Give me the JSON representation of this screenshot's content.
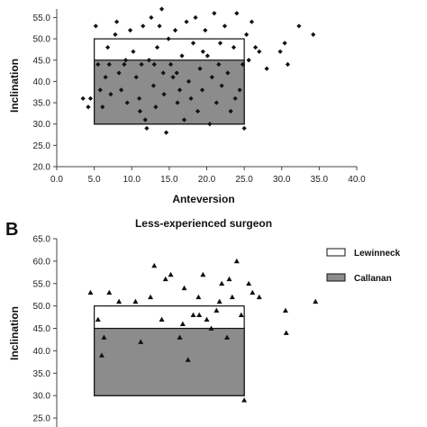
{
  "chart_data": [
    {
      "type": "scatter",
      "title": "",
      "xlabel": "Anteversion",
      "ylabel": "Inclination",
      "xlim": [
        0,
        40
      ],
      "ylim": [
        20,
        57
      ],
      "x_ticks": [
        "0.0",
        "5.0",
        "10.0",
        "15.0",
        "20.0",
        "25.0",
        "30.0",
        "35.0",
        "40.0"
      ],
      "y_ticks": [
        "20.0",
        "25.0",
        "30.0",
        "35.0",
        "40.0",
        "45.0",
        "50.0",
        "55.0"
      ],
      "marker": "diamond",
      "boxes": [
        {
          "name": "Lewinneck",
          "x": [
            5,
            25
          ],
          "y": [
            30,
            50
          ],
          "fill": "#ffffff"
        },
        {
          "name": "Callanan",
          "x": [
            5,
            25
          ],
          "y": [
            30,
            45
          ],
          "fill": "#8c8c8c"
        }
      ],
      "points": [
        [
          4.5,
          36
        ],
        [
          4.2,
          34
        ],
        [
          3.5,
          36
        ],
        [
          5.2,
          53
        ],
        [
          5.5,
          44
        ],
        [
          5.8,
          38
        ],
        [
          6.1,
          34
        ],
        [
          6.5,
          41
        ],
        [
          7.0,
          44
        ],
        [
          7.2,
          37
        ],
        [
          7.8,
          51
        ],
        [
          8.0,
          54
        ],
        [
          8.3,
          42
        ],
        [
          8.6,
          38
        ],
        [
          9.0,
          44
        ],
        [
          9.4,
          35
        ],
        [
          9.8,
          52
        ],
        [
          10.2,
          47
        ],
        [
          10.6,
          41
        ],
        [
          11.0,
          36
        ],
        [
          11.1,
          33
        ],
        [
          11.3,
          44
        ],
        [
          11.5,
          53
        ],
        [
          11.8,
          31
        ],
        [
          12.0,
          29
        ],
        [
          12.3,
          45
        ],
        [
          12.6,
          55
        ],
        [
          12.9,
          39
        ],
        [
          13.2,
          34
        ],
        [
          13.4,
          48
        ],
        [
          13.7,
          53
        ],
        [
          14.0,
          57
        ],
        [
          14.2,
          42
        ],
        [
          14.3,
          37
        ],
        [
          14.6,
          28
        ],
        [
          14.9,
          50
        ],
        [
          15.2,
          44
        ],
        [
          15.5,
          41
        ],
        [
          15.8,
          52
        ],
        [
          16.1,
          35
        ],
        [
          16.4,
          38
        ],
        [
          16.7,
          46
        ],
        [
          17.0,
          31
        ],
        [
          17.3,
          54
        ],
        [
          17.6,
          40
        ],
        [
          17.9,
          36
        ],
        [
          18.2,
          49
        ],
        [
          18.5,
          55
        ],
        [
          18.8,
          33
        ],
        [
          19.1,
          43
        ],
        [
          19.4,
          38
        ],
        [
          19.8,
          52
        ],
        [
          20.1,
          46
        ],
        [
          20.4,
          30
        ],
        [
          20.7,
          41
        ],
        [
          21.0,
          56
        ],
        [
          21.3,
          35
        ],
        [
          21.6,
          44
        ],
        [
          22.0,
          39
        ],
        [
          22.4,
          53
        ],
        [
          22.8,
          42
        ],
        [
          23.2,
          33
        ],
        [
          23.6,
          48
        ],
        [
          24.0,
          56
        ],
        [
          24.4,
          38
        ],
        [
          24.8,
          44
        ],
        [
          25.0,
          29
        ],
        [
          25.3,
          51
        ],
        [
          25.6,
          45
        ],
        [
          26.0,
          54
        ],
        [
          26.5,
          48
        ],
        [
          27.0,
          47
        ],
        [
          28.0,
          43
        ],
        [
          29.8,
          47
        ],
        [
          30.4,
          49
        ],
        [
          30.8,
          44
        ],
        [
          32.3,
          53
        ],
        [
          34.2,
          51
        ],
        [
          6.8,
          48
        ],
        [
          9.2,
          45
        ],
        [
          13.0,
          44
        ],
        [
          16.0,
          42
        ],
        [
          19.5,
          47
        ],
        [
          21.8,
          49
        ],
        [
          23.8,
          36
        ]
      ]
    },
    {
      "type": "scatter",
      "panel_label": "B",
      "title": "Less-experienced surgeon",
      "xlabel": "",
      "ylabel": "Inclination",
      "xlim": [
        0,
        40
      ],
      "ylim": [
        23,
        65
      ],
      "y_ticks": [
        "25.0",
        "30.0",
        "35.0",
        "40.0",
        "45.0",
        "50.0",
        "55.0",
        "60.0",
        "65.0"
      ],
      "marker": "triangle",
      "legend": {
        "position": "top-right",
        "entries": [
          "Lewinneck",
          "Callanan"
        ]
      },
      "boxes": [
        {
          "name": "Lewinneck",
          "x": [
            5,
            25
          ],
          "y": [
            30,
            50
          ],
          "fill": "#ffffff"
        },
        {
          "name": "Callanan",
          "x": [
            5,
            25
          ],
          "y": [
            30,
            45
          ],
          "fill": "#8c8c8c"
        }
      ],
      "points": [
        [
          4.5,
          53
        ],
        [
          5.5,
          47
        ],
        [
          6.0,
          39
        ],
        [
          6.3,
          43
        ],
        [
          7.0,
          53
        ],
        [
          8.3,
          51
        ],
        [
          10.5,
          51
        ],
        [
          11.2,
          42
        ],
        [
          12.5,
          52
        ],
        [
          13.0,
          59
        ],
        [
          14.5,
          56
        ],
        [
          15.2,
          57
        ],
        [
          16.4,
          43
        ],
        [
          17.0,
          54
        ],
        [
          17.5,
          38
        ],
        [
          18.2,
          48
        ],
        [
          18.9,
          52
        ],
        [
          19.5,
          57
        ],
        [
          20.0,
          47
        ],
        [
          20.6,
          45
        ],
        [
          21.3,
          49
        ],
        [
          22.0,
          55
        ],
        [
          22.7,
          43
        ],
        [
          23.4,
          52
        ],
        [
          24.0,
          60
        ],
        [
          24.6,
          48
        ],
        [
          25.0,
          29
        ],
        [
          25.6,
          55
        ],
        [
          26.1,
          53
        ],
        [
          27.0,
          52
        ],
        [
          30.5,
          49
        ],
        [
          30.6,
          44
        ],
        [
          34.5,
          51
        ],
        [
          14.0,
          47
        ],
        [
          16.8,
          46
        ],
        [
          19.0,
          48
        ],
        [
          21.7,
          51
        ],
        [
          23.0,
          56
        ]
      ]
    }
  ]
}
